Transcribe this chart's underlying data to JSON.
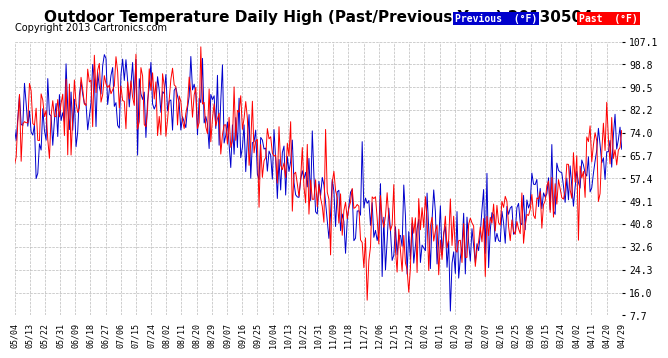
{
  "title": "Outdoor Temperature Daily High (Past/Previous Year) 20130504",
  "copyright": "Copyright 2013 Cartronics.com",
  "y_ticks": [
    7.7,
    16.0,
    24.3,
    32.6,
    40.8,
    49.1,
    57.4,
    65.7,
    74.0,
    82.2,
    90.5,
    98.8,
    107.1
  ],
  "x_tick_labels": [
    "05/04",
    "05/13",
    "05/22",
    "05/31",
    "06/09",
    "06/18",
    "06/27",
    "07/06",
    "07/15",
    "07/24",
    "08/02",
    "08/11",
    "08/20",
    "08/29",
    "09/07",
    "09/16",
    "09/25",
    "10/04",
    "10/13",
    "10/22",
    "10/31",
    "11/09",
    "11/18",
    "11/27",
    "12/06",
    "12/15",
    "12/24",
    "01/02",
    "01/11",
    "01/20",
    "01/29",
    "02/07",
    "02/16",
    "02/25",
    "03/06",
    "03/15",
    "03/24",
    "04/02",
    "04/11",
    "04/20",
    "04/29"
  ],
  "legend_previous_label": "Previous  (°F)",
  "legend_past_label": "Past  (°F)",
  "previous_color": "#0000cd",
  "past_color": "#ff0000",
  "background_color": "#ffffff",
  "grid_color": "#bbbbbb",
  "title_fontsize": 11,
  "copyright_fontsize": 7,
  "line_width": 0.7,
  "ylim": [
    7.7,
    107.1
  ]
}
